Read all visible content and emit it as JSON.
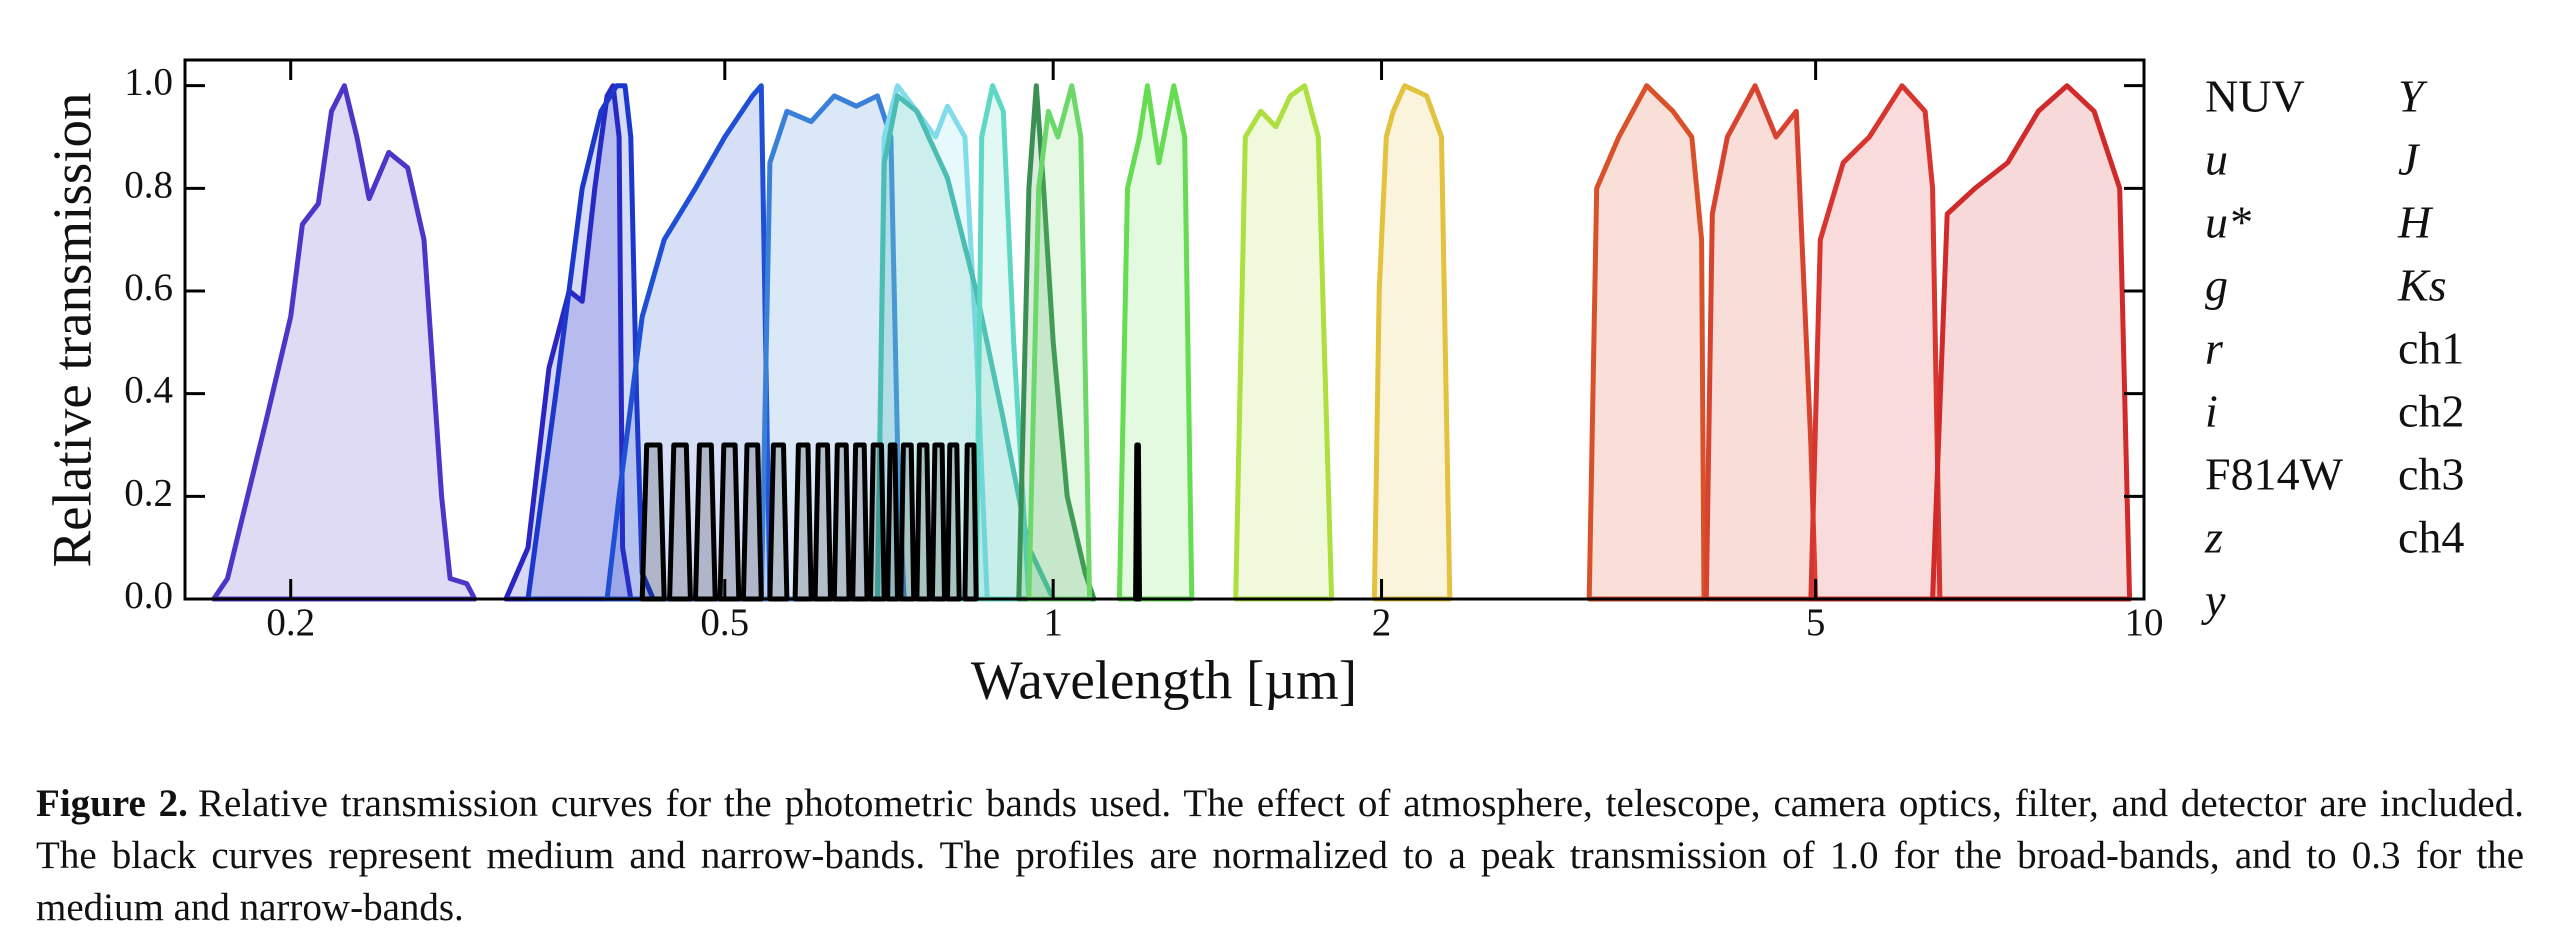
{
  "chart_data": {
    "type": "line",
    "xlabel": "Wavelength [µm]",
    "ylabel": "Relative transmission",
    "xscale": "log",
    "xlim": [
      0.16,
      10
    ],
    "ylim": [
      0,
      1.05
    ],
    "xticks": [
      0.2,
      0.5,
      1,
      2,
      5,
      10
    ],
    "yticks": [
      {
        "value": 0,
        "label": "0.0"
      },
      {
        "value": 0.2,
        "label": "0.2"
      },
      {
        "value": 0.4,
        "label": "0.4"
      },
      {
        "value": 0.6,
        "label": "0.6"
      },
      {
        "value": 0.8,
        "label": "0.8"
      },
      {
        "value": 1,
        "label": "1.0"
      }
    ],
    "fill": true,
    "legend": "right",
    "series": [
      {
        "name": "NUV",
        "color": "#4b36c8",
        "x": [
          0.17,
          0.175,
          0.19,
          0.2,
          0.205,
          0.212,
          0.218,
          0.224,
          0.23,
          0.236,
          0.246,
          0.256,
          0.265,
          0.275,
          0.28,
          0.29,
          0.295
        ],
        "values": [
          0,
          0.04,
          0.35,
          0.55,
          0.73,
          0.77,
          0.95,
          1.0,
          0.9,
          0.78,
          0.87,
          0.84,
          0.7,
          0.2,
          0.04,
          0.03,
          0
        ]
      },
      {
        "name": "u",
        "color": "#2a26c4",
        "font_style": "italic",
        "x": [
          0.315,
          0.33,
          0.345,
          0.36,
          0.37,
          0.38,
          0.39,
          0.395,
          0.4,
          0.403,
          0.41
        ],
        "values": [
          0,
          0.1,
          0.45,
          0.6,
          0.58,
          0.8,
          0.98,
          1.0,
          0.9,
          0.1,
          0
        ]
      },
      {
        "name": "u*",
        "color": "#1c38cc",
        "font_style": "italic",
        "x": [
          0.33,
          0.35,
          0.37,
          0.385,
          0.398,
          0.405,
          0.41,
          0.415,
          0.42,
          0.43
        ],
        "values": [
          0,
          0.4,
          0.8,
          0.95,
          1.0,
          1.0,
          0.9,
          0.4,
          0.05,
          0
        ]
      },
      {
        "name": "g",
        "color": "#1f4fd4",
        "font_style": "italic",
        "x": [
          0.39,
          0.4,
          0.42,
          0.44,
          0.47,
          0.5,
          0.53,
          0.54,
          0.545,
          0.55
        ],
        "values": [
          0,
          0.2,
          0.55,
          0.7,
          0.8,
          0.9,
          0.98,
          1.0,
          0.5,
          0
        ]
      },
      {
        "name": "r",
        "color": "#3a80d8",
        "font_style": "italic",
        "x": [
          0.54,
          0.55,
          0.57,
          0.6,
          0.63,
          0.66,
          0.69,
          0.71,
          0.72,
          0.73
        ],
        "values": [
          0,
          0.85,
          0.95,
          0.93,
          0.98,
          0.96,
          0.98,
          0.9,
          0.3,
          0
        ]
      },
      {
        "name": "i",
        "color": "#80dcea",
        "font_style": "italic",
        "x": [
          0.69,
          0.7,
          0.72,
          0.75,
          0.78,
          0.8,
          0.83,
          0.85,
          0.87
        ],
        "values": [
          0,
          0.9,
          1.0,
          0.95,
          0.9,
          0.96,
          0.9,
          0.5,
          0
        ]
      },
      {
        "name": "F814W",
        "color": "#4cbdb2",
        "x": [
          0.69,
          0.7,
          0.72,
          0.75,
          0.8,
          0.85,
          0.9,
          0.95,
          1.0
        ],
        "values": [
          0,
          0.85,
          0.98,
          0.95,
          0.82,
          0.6,
          0.35,
          0.1,
          0
        ]
      },
      {
        "name": "z",
        "color": "#5ed8c4",
        "font_style": "italic",
        "x": [
          0.85,
          0.86,
          0.88,
          0.9,
          0.92,
          0.95
        ],
        "values": [
          0,
          0.9,
          1.0,
          0.95,
          0.5,
          0
        ]
      },
      {
        "name": "y",
        "color": "#3a8f52",
        "font_style": "italic",
        "x": [
          0.93,
          0.95,
          0.965,
          0.98,
          1.0,
          1.03,
          1.07,
          1.09
        ],
        "values": [
          0,
          0.8,
          1.0,
          0.8,
          0.5,
          0.2,
          0.05,
          0
        ]
      },
      {
        "name": "Y",
        "color": "#6cd86a",
        "font_style": "italic",
        "x": [
          0.95,
          0.97,
          0.99,
          1.01,
          1.04,
          1.06,
          1.08
        ],
        "values": [
          0,
          0.8,
          0.95,
          0.9,
          1.0,
          0.9,
          0
        ]
      },
      {
        "name": "J",
        "color": "#66dc52",
        "font_style": "italic",
        "x": [
          1.15,
          1.17,
          1.2,
          1.22,
          1.25,
          1.29,
          1.32,
          1.34
        ],
        "values": [
          0,
          0.8,
          0.9,
          1.0,
          0.85,
          1.0,
          0.9,
          0
        ]
      },
      {
        "name": "H",
        "color": "#addf3e",
        "font_style": "italic",
        "x": [
          1.47,
          1.5,
          1.55,
          1.6,
          1.65,
          1.7,
          1.75,
          1.8
        ],
        "values": [
          0,
          0.9,
          0.95,
          0.92,
          0.98,
          1.0,
          0.9,
          0
        ]
      },
      {
        "name": "Ks",
        "color": "#e2c23e",
        "font_style": "italic",
        "x": [
          1.97,
          1.99,
          2.02,
          2.05,
          2.1,
          2.2,
          2.27,
          2.31
        ],
        "values": [
          0,
          0.6,
          0.9,
          0.95,
          1.0,
          0.98,
          0.9,
          0
        ]
      },
      {
        "name": "ch1",
        "color": "#d9512b",
        "x": [
          3.1,
          3.15,
          3.3,
          3.5,
          3.7,
          3.85,
          3.93,
          3.95
        ],
        "values": [
          0,
          0.8,
          0.9,
          1.0,
          0.95,
          0.9,
          0.7,
          0
        ]
      },
      {
        "name": "ch2",
        "color": "#d8432f",
        "x": [
          3.97,
          4.02,
          4.15,
          4.4,
          4.6,
          4.8,
          4.95,
          5.0
        ],
        "values": [
          0,
          0.75,
          0.9,
          1.0,
          0.9,
          0.95,
          0.3,
          0
        ]
      },
      {
        "name": "ch3",
        "color": "#d63530",
        "x": [
          4.95,
          5.05,
          5.3,
          5.6,
          6.0,
          6.3,
          6.4,
          6.5
        ],
        "values": [
          0,
          0.7,
          0.85,
          0.9,
          1.0,
          0.95,
          0.8,
          0
        ]
      },
      {
        "name": "ch4",
        "color": "#d02a2a",
        "x": [
          6.4,
          6.6,
          7.0,
          7.5,
          8.0,
          8.5,
          9.0,
          9.5,
          9.7
        ],
        "values": [
          0,
          0.75,
          0.8,
          0.85,
          0.95,
          1.0,
          0.95,
          0.8,
          0
        ]
      },
      {
        "color": "#000000",
        "x": [
          0.42,
          0.424,
          0.436,
          0.44,
          null,
          0.445,
          0.449,
          0.461,
          0.465,
          null,
          0.47,
          0.474,
          0.486,
          0.49,
          null,
          0.495,
          0.499,
          0.511,
          0.515,
          null,
          0.52,
          0.524,
          0.536,
          0.54,
          null,
          0.55,
          0.554,
          0.566,
          0.57,
          null,
          0.58,
          0.584,
          0.596,
          0.6,
          null,
          0.605,
          0.609,
          0.621,
          0.625,
          null,
          0.63,
          0.634,
          0.646,
          0.65,
          null,
          0.655,
          0.659,
          0.671,
          0.675,
          null,
          0.68,
          0.684,
          0.696,
          0.7,
          null,
          0.705,
          0.709,
          0.716,
          0.72,
          null,
          0.725,
          0.729,
          0.741,
          0.745,
          null,
          0.75,
          0.754,
          0.766,
          0.77,
          null,
          0.775,
          0.779,
          0.791,
          0.795,
          null,
          0.8,
          0.804,
          0.816,
          0.82,
          null,
          0.83,
          0.834,
          0.846,
          0.85,
          null,
          1.19,
          1.193,
          1.197,
          1.2
        ],
        "values": [
          0,
          0.3,
          0.3,
          0,
          null,
          0,
          0.3,
          0.3,
          0,
          null,
          0,
          0.3,
          0.3,
          0,
          null,
          0,
          0.3,
          0.3,
          0,
          null,
          0,
          0.3,
          0.3,
          0,
          null,
          0,
          0.3,
          0.3,
          0,
          null,
          0,
          0.3,
          0.3,
          0,
          null,
          0,
          0.3,
          0.3,
          0,
          null,
          0,
          0.3,
          0.3,
          0,
          null,
          0,
          0.3,
          0.3,
          0,
          null,
          0,
          0.3,
          0.3,
          0,
          null,
          0,
          0.3,
          0.3,
          0,
          null,
          0,
          0.3,
          0.3,
          0,
          null,
          0,
          0.3,
          0.3,
          0,
          null,
          0,
          0.3,
          0.3,
          0,
          null,
          0,
          0.3,
          0.3,
          0,
          null,
          0,
          0.3,
          0.3,
          0,
          null,
          0,
          0.3,
          0.3,
          0
        ]
      }
    ]
  },
  "caption": {
    "label": "Figure 2.",
    "text": "Relative transmission curves for the photometric bands used. The effect of atmosphere, telescope, camera optics, filter, and detector are included. The black curves represent medium and narrow-bands. The profiles are normalized to a peak transmission of 1.0 for the broad-bands, and to 0.3 for the medium and narrow-bands."
  }
}
